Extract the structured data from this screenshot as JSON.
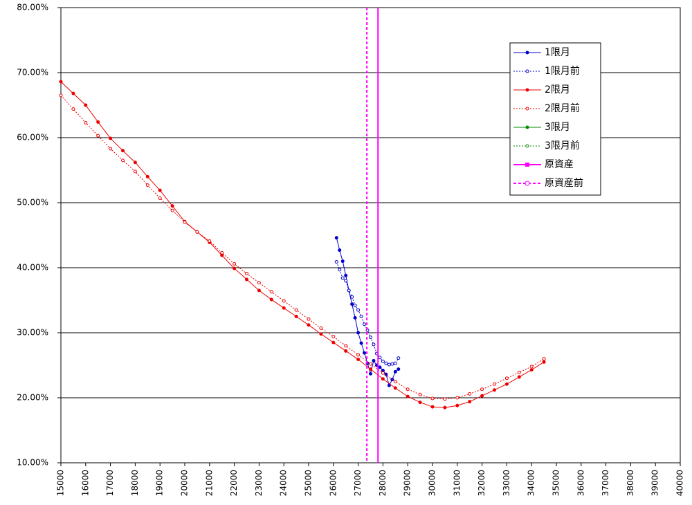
{
  "chart_data": {
    "type": "line",
    "xlim": [
      15000,
      40000
    ],
    "xticks": [
      15000,
      16000,
      17000,
      18000,
      19000,
      20000,
      21000,
      22000,
      23000,
      24000,
      25000,
      26000,
      27000,
      28000,
      29000,
      30000,
      31000,
      32000,
      33000,
      34000,
      35000,
      36000,
      37000,
      38000,
      39000,
      40000
    ],
    "ylim": [
      10,
      80
    ],
    "yticks": [
      {
        "value": 10,
        "label": "10.00%"
      },
      {
        "value": 20,
        "label": "20.00%"
      },
      {
        "value": 30,
        "label": "30.00%"
      },
      {
        "value": 40,
        "label": "40.00%"
      },
      {
        "value": 50,
        "label": "50.00%"
      },
      {
        "value": 60,
        "label": "60.00%"
      },
      {
        "value": 70,
        "label": "70.00%"
      },
      {
        "value": 80,
        "label": "80.00%"
      }
    ],
    "grid": true,
    "legend": "upper right",
    "series": [
      {
        "name": "1限月",
        "color": "#0000cc",
        "dashed": false,
        "x": [
          26125,
          26250,
          26375,
          26500,
          26625,
          26750,
          26875,
          27000,
          27125,
          27250,
          27375,
          27500,
          27625,
          27750,
          27875,
          28000,
          28125,
          28250,
          28375,
          28500,
          28625
        ],
        "values": [
          44.6,
          42.7,
          41,
          38.8,
          36.5,
          34.4,
          32.3,
          30,
          28.4,
          26.9,
          25.3,
          23.7,
          25.7,
          25,
          24.7,
          24.2,
          23.6,
          21.9,
          22.8,
          24,
          24.4
        ]
      },
      {
        "name": "1限月前",
        "color": "#0000cc",
        "dashed": true,
        "x": [
          26125,
          26250,
          26375,
          26500,
          26625,
          26750,
          26875,
          27000,
          27125,
          27250,
          27375,
          27500,
          27625,
          27750,
          27875,
          28000,
          28125,
          28250,
          28375,
          28500,
          28625
        ],
        "values": [
          40.9,
          39.7,
          38.4,
          38,
          36.5,
          35.5,
          34.2,
          33.5,
          32.5,
          31.3,
          30.4,
          29.3,
          28.2,
          26.8,
          26.2,
          25.6,
          25.3,
          25.1,
          25.2,
          25.3,
          26.1
        ]
      },
      {
        "name": "2限月",
        "color": "#ee0000",
        "dashed": false,
        "x": [
          15000,
          15500,
          16000,
          16500,
          17000,
          17500,
          18000,
          18500,
          19000,
          19500,
          20000,
          20500,
          21000,
          21500,
          22000,
          22500,
          23000,
          23500,
          24000,
          24500,
          25000,
          25500,
          26000,
          26500,
          27000,
          27500,
          28000,
          28500,
          29000,
          29500,
          30000,
          30500,
          31000,
          31500,
          32000,
          32500,
          33000,
          33500,
          34000,
          34500
        ],
        "values": [
          68.6,
          66.8,
          65.0,
          62.4,
          59.9,
          58.0,
          56.2,
          54.0,
          51.9,
          49.5,
          47.1,
          45.5,
          43.9,
          41.9,
          39.9,
          38.2,
          36.5,
          35.1,
          33.8,
          32.5,
          31.2,
          29.8,
          28.5,
          27.2,
          25.9,
          24.4,
          22.9,
          21.5,
          20.2,
          19.3,
          18.6,
          18.5,
          18.8,
          19.4,
          20.3,
          21.2,
          22.1,
          23.2,
          24.3,
          25.5
        ]
      },
      {
        "name": "2限月前",
        "color": "#ee0000",
        "dashed": true,
        "x": [
          15000,
          15500,
          16000,
          16500,
          17000,
          17500,
          18000,
          18500,
          19000,
          19500,
          20000,
          20500,
          21000,
          21500,
          22000,
          22500,
          23000,
          23500,
          24000,
          24500,
          25000,
          25500,
          26000,
          26500,
          27000,
          27500,
          28000,
          28500,
          29000,
          29500,
          30000,
          30500,
          31000,
          31500,
          32000,
          32500,
          33000,
          33500,
          34000,
          34500
        ],
        "values": [
          66.5,
          64.4,
          62.3,
          60.3,
          58.3,
          56.5,
          54.8,
          52.7,
          50.7,
          48.8,
          47.0,
          45.5,
          44.1,
          42.3,
          40.6,
          39.1,
          37.7,
          36.3,
          34.9,
          33.5,
          32.1,
          30.7,
          29.4,
          28.0,
          26.6,
          25.2,
          23.8,
          22.5,
          21.3,
          20.5,
          19.9,
          19.8,
          20.0,
          20.6,
          21.3,
          22.1,
          23.0,
          23.9,
          24.8,
          26.0
        ]
      },
      {
        "name": "3限月",
        "color": "#008800",
        "dashed": false,
        "x": [],
        "values": []
      },
      {
        "name": "3限月前",
        "color": "#008800",
        "dashed": true,
        "x": [],
        "values": []
      }
    ],
    "vlines": [
      {
        "name": "原資産",
        "color": "#ff00ff",
        "dashed": false,
        "x": 27800
      },
      {
        "name": "原資産前",
        "color": "#ff00ff",
        "dashed": true,
        "x": 27350
      }
    ]
  }
}
